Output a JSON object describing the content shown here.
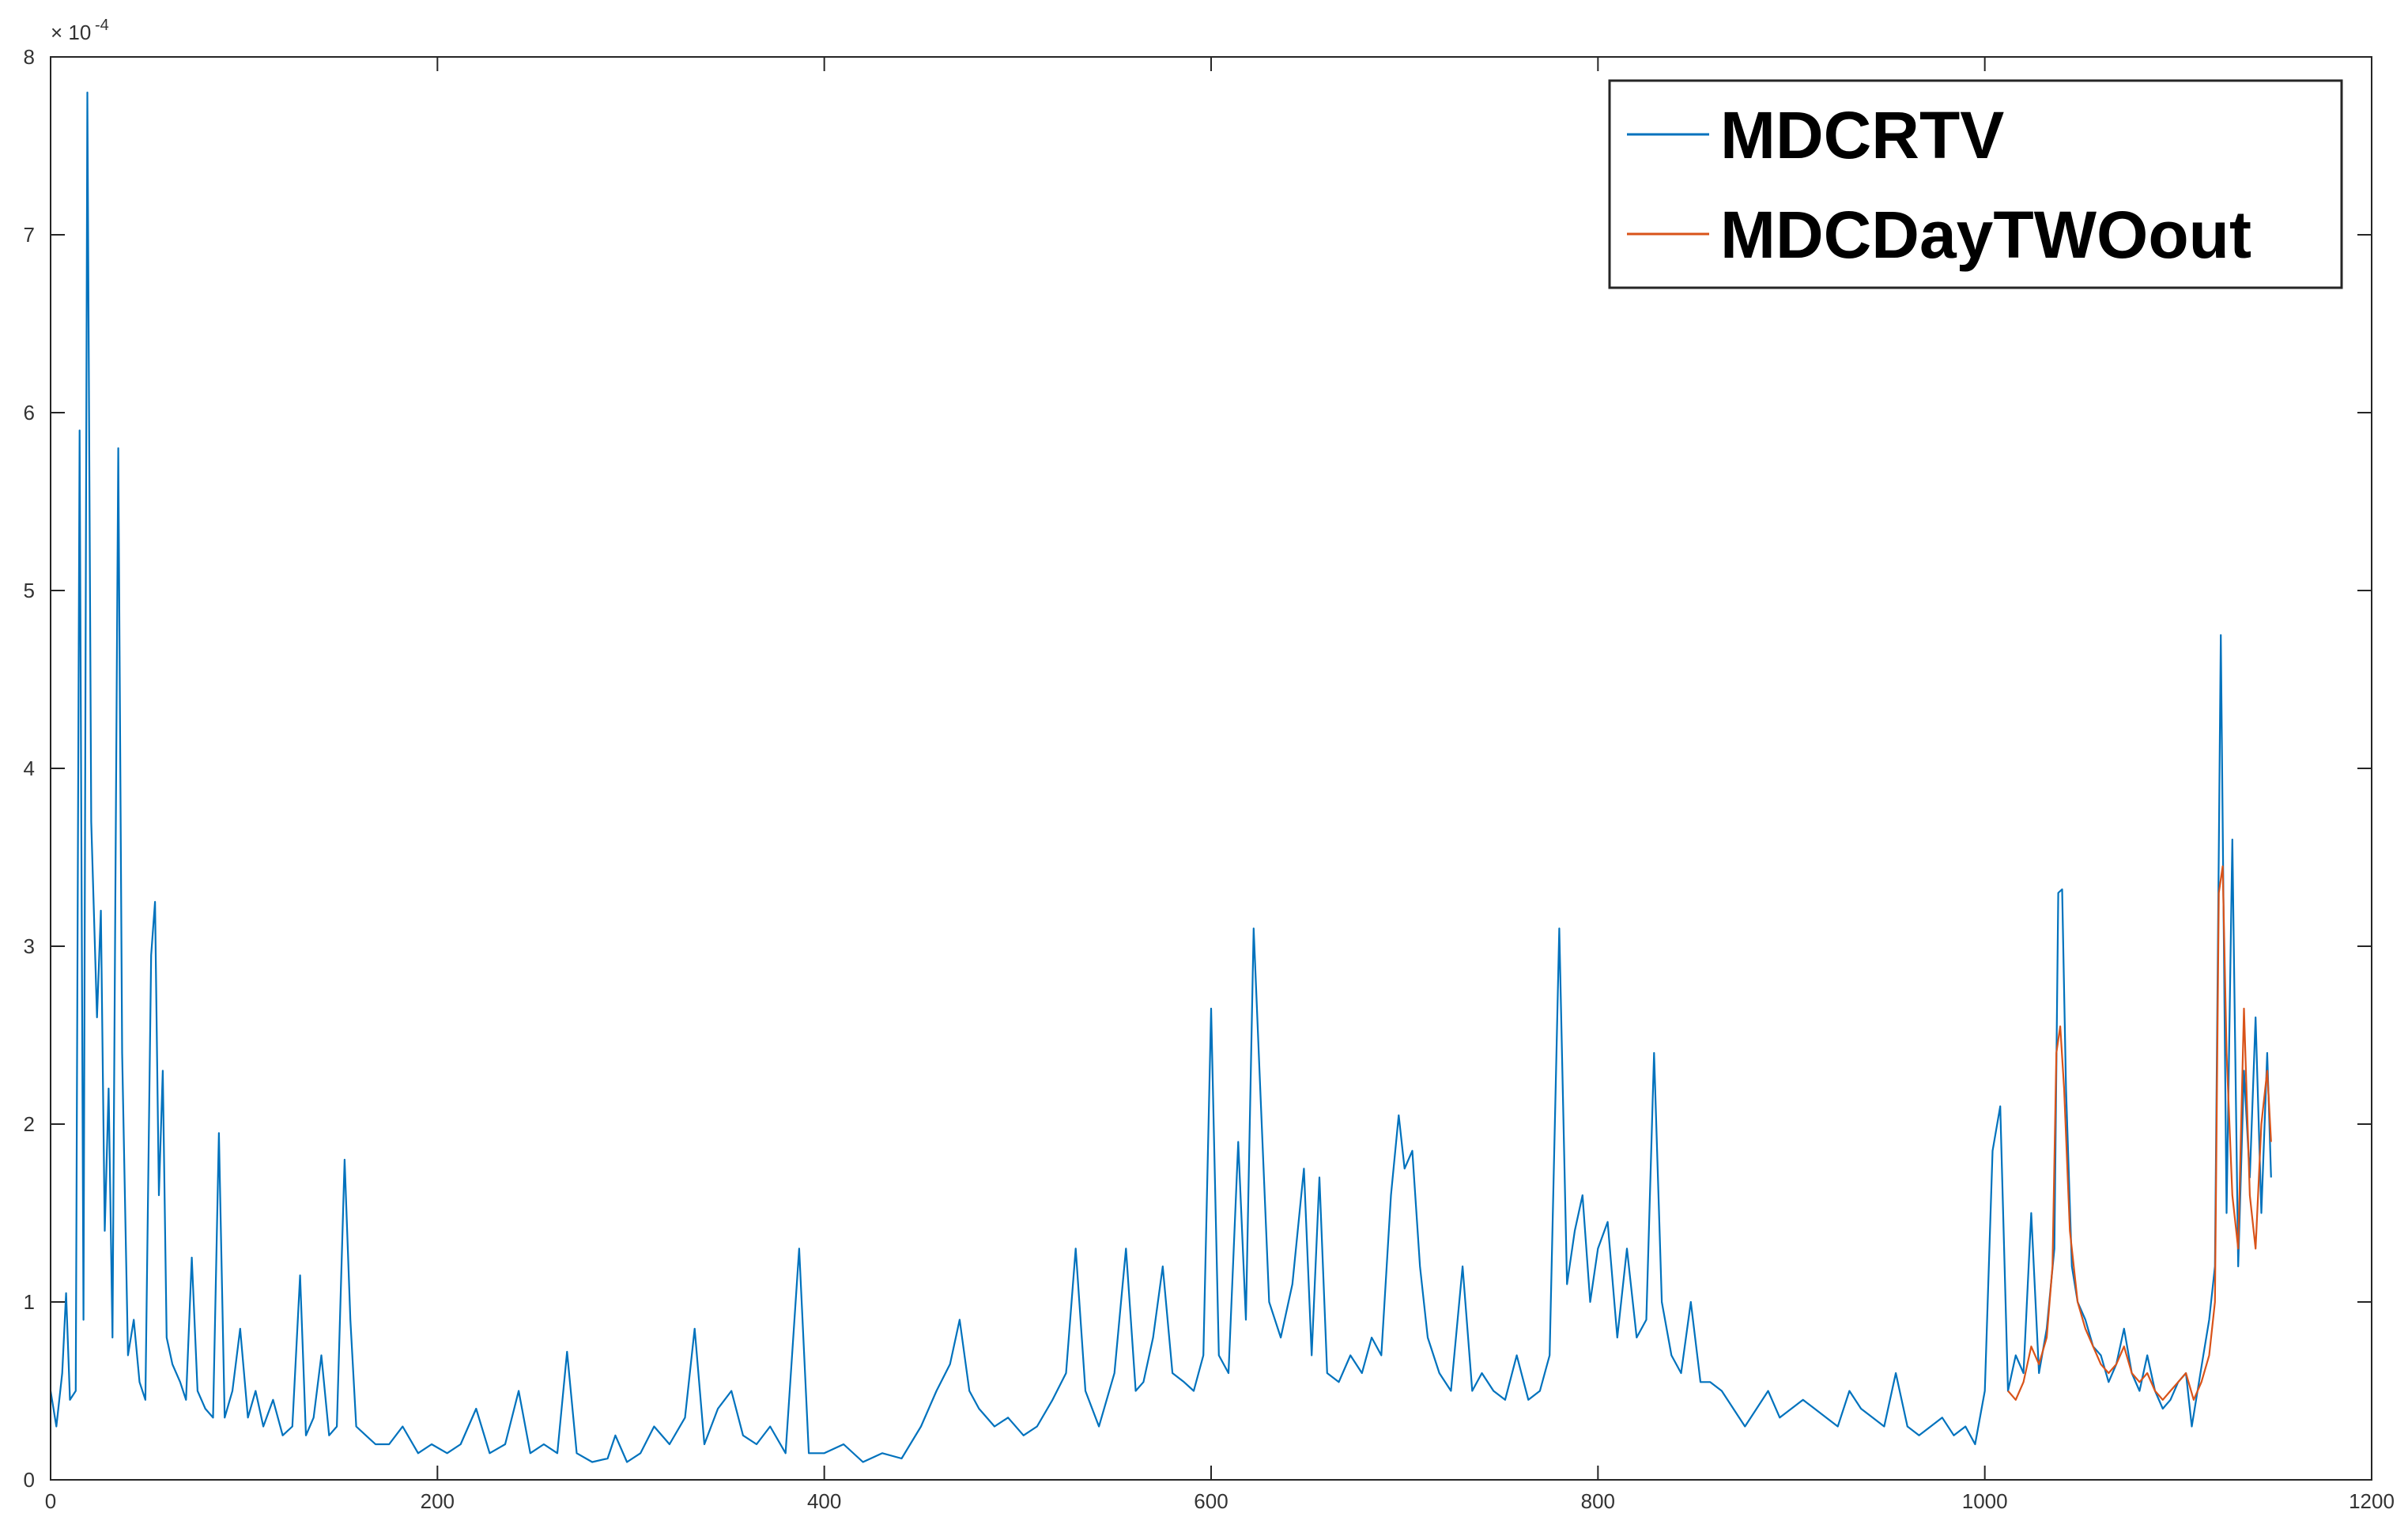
{
  "chart_data": {
    "type": "line",
    "title": "",
    "xlabel": "",
    "ylabel": "",
    "xlim": [
      0,
      1200
    ],
    "ylim": [
      0,
      8
    ],
    "y_exponent_label": "× 10",
    "y_exponent_power": "-4",
    "x_ticks": [
      0,
      200,
      400,
      600,
      800,
      1000,
      1200
    ],
    "y_ticks": [
      0,
      1,
      2,
      3,
      4,
      5,
      6,
      7,
      8
    ],
    "x_tick_labels": [
      "0",
      "200",
      "400",
      "600",
      "800",
      "1000",
      "1200"
    ],
    "y_tick_labels": [
      "0",
      "1",
      "2",
      "3",
      "4",
      "5",
      "6",
      "7",
      "8"
    ],
    "legend_position": "top-right",
    "grid": false,
    "series": [
      {
        "name": "MDCRTV",
        "color": "#0072BD",
        "points": [
          [
            0,
            0.5
          ],
          [
            3,
            0.3
          ],
          [
            6,
            0.6
          ],
          [
            8,
            1.05
          ],
          [
            10,
            0.45
          ],
          [
            13,
            0.5
          ],
          [
            15,
            5.9
          ],
          [
            17,
            0.9
          ],
          [
            19,
            7.8
          ],
          [
            21,
            3.7
          ],
          [
            24,
            2.6
          ],
          [
            26,
            3.2
          ],
          [
            28,
            1.4
          ],
          [
            30,
            2.2
          ],
          [
            32,
            0.8
          ],
          [
            35,
            5.8
          ],
          [
            37,
            2.4
          ],
          [
            40,
            0.7
          ],
          [
            43,
            0.9
          ],
          [
            46,
            0.55
          ],
          [
            49,
            0.45
          ],
          [
            52,
            2.95
          ],
          [
            54,
            3.25
          ],
          [
            56,
            1.6
          ],
          [
            58,
            2.3
          ],
          [
            60,
            0.8
          ],
          [
            63,
            0.65
          ],
          [
            67,
            0.55
          ],
          [
            70,
            0.45
          ],
          [
            73,
            1.25
          ],
          [
            76,
            0.5
          ],
          [
            80,
            0.4
          ],
          [
            84,
            0.35
          ],
          [
            87,
            1.95
          ],
          [
            90,
            0.35
          ],
          [
            94,
            0.5
          ],
          [
            98,
            0.85
          ],
          [
            102,
            0.35
          ],
          [
            106,
            0.5
          ],
          [
            110,
            0.3
          ],
          [
            115,
            0.45
          ],
          [
            120,
            0.25
          ],
          [
            125,
            0.3
          ],
          [
            129,
            1.15
          ],
          [
            132,
            0.25
          ],
          [
            136,
            0.35
          ],
          [
            140,
            0.7
          ],
          [
            144,
            0.25
          ],
          [
            148,
            0.3
          ],
          [
            152,
            1.8
          ],
          [
            155,
            0.9
          ],
          [
            158,
            0.3
          ],
          [
            163,
            0.25
          ],
          [
            168,
            0.2
          ],
          [
            175,
            0.2
          ],
          [
            182,
            0.3
          ],
          [
            190,
            0.15
          ],
          [
            197,
            0.2
          ],
          [
            205,
            0.15
          ],
          [
            212,
            0.2
          ],
          [
            220,
            0.4
          ],
          [
            227,
            0.15
          ],
          [
            235,
            0.2
          ],
          [
            242,
            0.5
          ],
          [
            248,
            0.15
          ],
          [
            255,
            0.2
          ],
          [
            262,
            0.15
          ],
          [
            267,
            0.72
          ],
          [
            272,
            0.15
          ],
          [
            280,
            0.1
          ],
          [
            288,
            0.12
          ],
          [
            292,
            0.25
          ],
          [
            298,
            0.1
          ],
          [
            305,
            0.15
          ],
          [
            312,
            0.3
          ],
          [
            320,
            0.2
          ],
          [
            328,
            0.35
          ],
          [
            333,
            0.85
          ],
          [
            338,
            0.2
          ],
          [
            345,
            0.4
          ],
          [
            352,
            0.5
          ],
          [
            358,
            0.25
          ],
          [
            365,
            0.2
          ],
          [
            372,
            0.3
          ],
          [
            380,
            0.15
          ],
          [
            387,
            1.3
          ],
          [
            392,
            0.15
          ],
          [
            400,
            0.15
          ],
          [
            410,
            0.2
          ],
          [
            420,
            0.1
          ],
          [
            430,
            0.15
          ],
          [
            440,
            0.12
          ],
          [
            450,
            0.3
          ],
          [
            458,
            0.5
          ],
          [
            465,
            0.65
          ],
          [
            470,
            0.9
          ],
          [
            475,
            0.5
          ],
          [
            480,
            0.4
          ],
          [
            488,
            0.3
          ],
          [
            495,
            0.35
          ],
          [
            503,
            0.25
          ],
          [
            510,
            0.3
          ],
          [
            518,
            0.45
          ],
          [
            525,
            0.6
          ],
          [
            530,
            1.3
          ],
          [
            535,
            0.5
          ],
          [
            542,
            0.3
          ],
          [
            550,
            0.6
          ],
          [
            556,
            1.3
          ],
          [
            561,
            0.5
          ],
          [
            565,
            0.55
          ],
          [
            570,
            0.8
          ],
          [
            575,
            1.2
          ],
          [
            580,
            0.6
          ],
          [
            586,
            0.55
          ],
          [
            591,
            0.5
          ],
          [
            596,
            0.7
          ],
          [
            600,
            2.65
          ],
          [
            604,
            0.7
          ],
          [
            609,
            0.6
          ],
          [
            614,
            1.9
          ],
          [
            618,
            0.9
          ],
          [
            622,
            3.1
          ],
          [
            625,
            2.3
          ],
          [
            630,
            1.0
          ],
          [
            636,
            0.8
          ],
          [
            642,
            1.1
          ],
          [
            648,
            1.75
          ],
          [
            652,
            0.7
          ],
          [
            656,
            1.7
          ],
          [
            660,
            0.6
          ],
          [
            666,
            0.55
          ],
          [
            672,
            0.7
          ],
          [
            678,
            0.6
          ],
          [
            683,
            0.8
          ],
          [
            688,
            0.7
          ],
          [
            693,
            1.6
          ],
          [
            697,
            2.05
          ],
          [
            700,
            1.75
          ],
          [
            704,
            1.85
          ],
          [
            708,
            1.2
          ],
          [
            712,
            0.8
          ],
          [
            718,
            0.6
          ],
          [
            724,
            0.5
          ],
          [
            730,
            1.2
          ],
          [
            735,
            0.5
          ],
          [
            740,
            0.6
          ],
          [
            746,
            0.5
          ],
          [
            752,
            0.45
          ],
          [
            758,
            0.7
          ],
          [
            764,
            0.45
          ],
          [
            770,
            0.5
          ],
          [
            775,
            0.7
          ],
          [
            780,
            3.1
          ],
          [
            784,
            1.1
          ],
          [
            788,
            1.4
          ],
          [
            792,
            1.6
          ],
          [
            796,
            1.0
          ],
          [
            800,
            1.3
          ],
          [
            805,
            1.45
          ],
          [
            810,
            0.8
          ],
          [
            815,
            1.3
          ],
          [
            820,
            0.8
          ],
          [
            825,
            0.9
          ],
          [
            829,
            2.4
          ],
          [
            833,
            1.0
          ],
          [
            838,
            0.7
          ],
          [
            843,
            0.6
          ],
          [
            848,
            1.0
          ],
          [
            853,
            0.55
          ],
          [
            858,
            0.55
          ],
          [
            864,
            0.5
          ],
          [
            870,
            0.4
          ],
          [
            876,
            0.3
          ],
          [
            882,
            0.4
          ],
          [
            888,
            0.5
          ],
          [
            894,
            0.35
          ],
          [
            900,
            0.4
          ],
          [
            906,
            0.45
          ],
          [
            912,
            0.4
          ],
          [
            918,
            0.35
          ],
          [
            924,
            0.3
          ],
          [
            930,
            0.5
          ],
          [
            936,
            0.4
          ],
          [
            942,
            0.35
          ],
          [
            948,
            0.3
          ],
          [
            954,
            0.6
          ],
          [
            960,
            0.3
          ],
          [
            966,
            0.25
          ],
          [
            972,
            0.3
          ],
          [
            978,
            0.35
          ],
          [
            984,
            0.25
          ],
          [
            990,
            0.3
          ],
          [
            995,
            0.2
          ],
          [
            1000,
            0.5
          ],
          [
            1004,
            1.85
          ],
          [
            1008,
            2.1
          ],
          [
            1012,
            0.5
          ],
          [
            1016,
            0.7
          ],
          [
            1020,
            0.6
          ],
          [
            1024,
            1.5
          ],
          [
            1028,
            0.6
          ],
          [
            1032,
            0.85
          ],
          [
            1036,
            1.3
          ],
          [
            1038,
            3.3
          ],
          [
            1040,
            3.32
          ],
          [
            1042,
            2.2
          ],
          [
            1045,
            1.2
          ],
          [
            1048,
            1.0
          ],
          [
            1052,
            0.9
          ],
          [
            1056,
            0.75
          ],
          [
            1060,
            0.7
          ],
          [
            1064,
            0.55
          ],
          [
            1068,
            0.65
          ],
          [
            1072,
            0.85
          ],
          [
            1076,
            0.6
          ],
          [
            1080,
            0.5
          ],
          [
            1084,
            0.7
          ],
          [
            1088,
            0.5
          ],
          [
            1092,
            0.4
          ],
          [
            1096,
            0.45
          ],
          [
            1100,
            0.55
          ],
          [
            1104,
            0.6
          ],
          [
            1107,
            0.3
          ],
          [
            1110,
            0.5
          ],
          [
            1113,
            0.7
          ],
          [
            1116,
            0.9
          ],
          [
            1119,
            1.2
          ],
          [
            1122,
            4.75
          ],
          [
            1125,
            1.5
          ],
          [
            1128,
            3.6
          ],
          [
            1131,
            1.2
          ],
          [
            1134,
            2.3
          ],
          [
            1137,
            1.7
          ],
          [
            1140,
            2.6
          ],
          [
            1143,
            1.5
          ],
          [
            1146,
            2.4
          ],
          [
            1148,
            1.7
          ]
        ]
      },
      {
        "name": "MDCDayTWOout",
        "color": "#D95319",
        "points": [
          [
            1012,
            0.5
          ],
          [
            1016,
            0.45
          ],
          [
            1020,
            0.55
          ],
          [
            1024,
            0.75
          ],
          [
            1028,
            0.65
          ],
          [
            1032,
            0.8
          ],
          [
            1035,
            1.2
          ],
          [
            1037,
            2.4
          ],
          [
            1039,
            2.55
          ],
          [
            1041,
            2.2
          ],
          [
            1044,
            1.4
          ],
          [
            1048,
            1.0
          ],
          [
            1052,
            0.85
          ],
          [
            1056,
            0.75
          ],
          [
            1060,
            0.65
          ],
          [
            1064,
            0.6
          ],
          [
            1068,
            0.65
          ],
          [
            1072,
            0.75
          ],
          [
            1076,
            0.6
          ],
          [
            1080,
            0.55
          ],
          [
            1084,
            0.6
          ],
          [
            1088,
            0.5
          ],
          [
            1092,
            0.45
          ],
          [
            1096,
            0.5
          ],
          [
            1100,
            0.55
          ],
          [
            1104,
            0.6
          ],
          [
            1108,
            0.45
          ],
          [
            1112,
            0.55
          ],
          [
            1116,
            0.7
          ],
          [
            1119,
            1.0
          ],
          [
            1121,
            3.3
          ],
          [
            1123,
            3.45
          ],
          [
            1125,
            2.4
          ],
          [
            1128,
            1.6
          ],
          [
            1131,
            1.3
          ],
          [
            1134,
            2.65
          ],
          [
            1137,
            1.6
          ],
          [
            1140,
            1.3
          ],
          [
            1143,
            2.0
          ],
          [
            1146,
            2.3
          ],
          [
            1148,
            1.9
          ]
        ]
      }
    ]
  }
}
